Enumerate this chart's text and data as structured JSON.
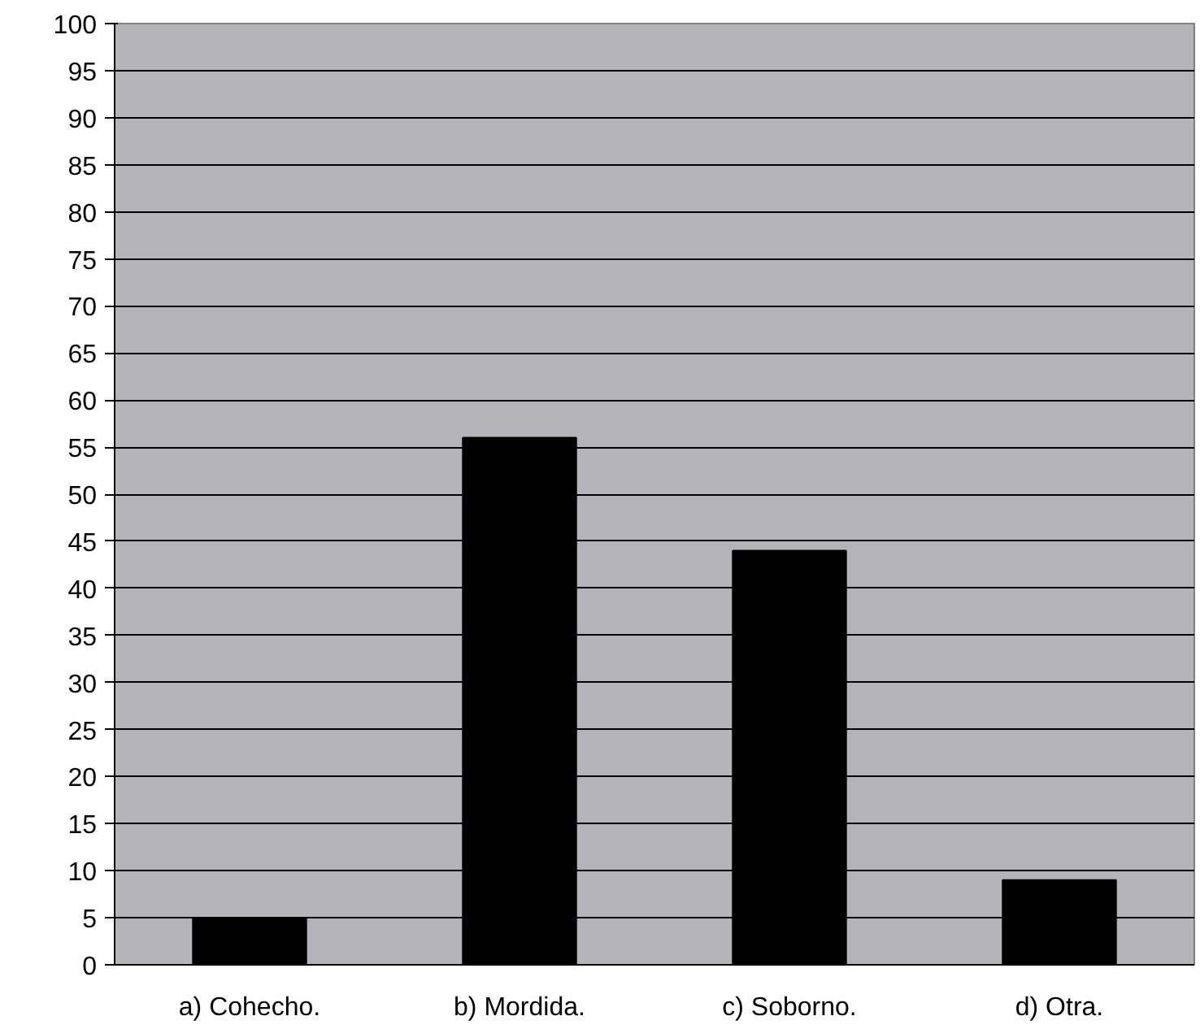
{
  "chart_data": {
    "type": "bar",
    "categories": [
      "a) Cohecho.",
      "b) Mordida.",
      "c) Soborno.",
      "d) Otra."
    ],
    "values": [
      5,
      56,
      44,
      9
    ],
    "color": "#000000",
    "ylim": [
      0,
      100
    ],
    "yticks": [
      0,
      5,
      10,
      15,
      20,
      25,
      30,
      35,
      40,
      45,
      50,
      55,
      60,
      65,
      70,
      75,
      80,
      85,
      90,
      95,
      100
    ],
    "grid": "y"
  }
}
